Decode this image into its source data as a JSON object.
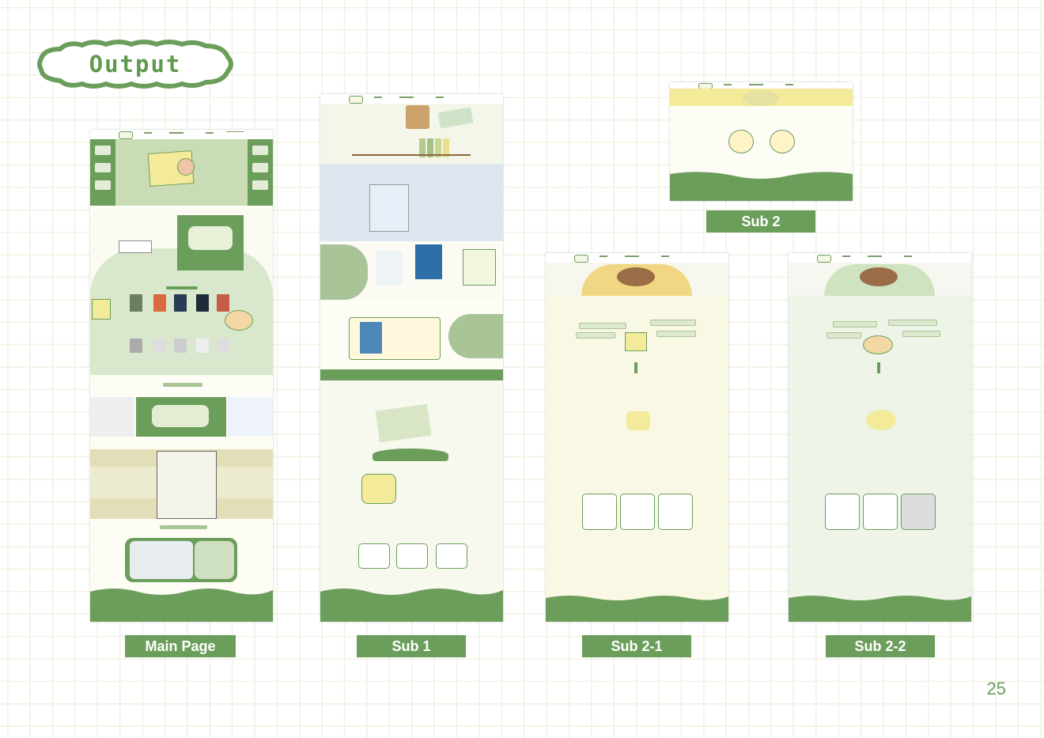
{
  "title": "Output",
  "page_number": "25",
  "labels": {
    "main": "Main Page",
    "sub1": "Sub 1",
    "sub2": "Sub 2",
    "sub21": "Sub 2-1",
    "sub22": "Sub 2-2"
  },
  "colors": {
    "accent": "#6c9e5b",
    "grid": "#f1f1e3",
    "light_green": "#c9dcb5",
    "yellow": "#f3ea9a"
  }
}
